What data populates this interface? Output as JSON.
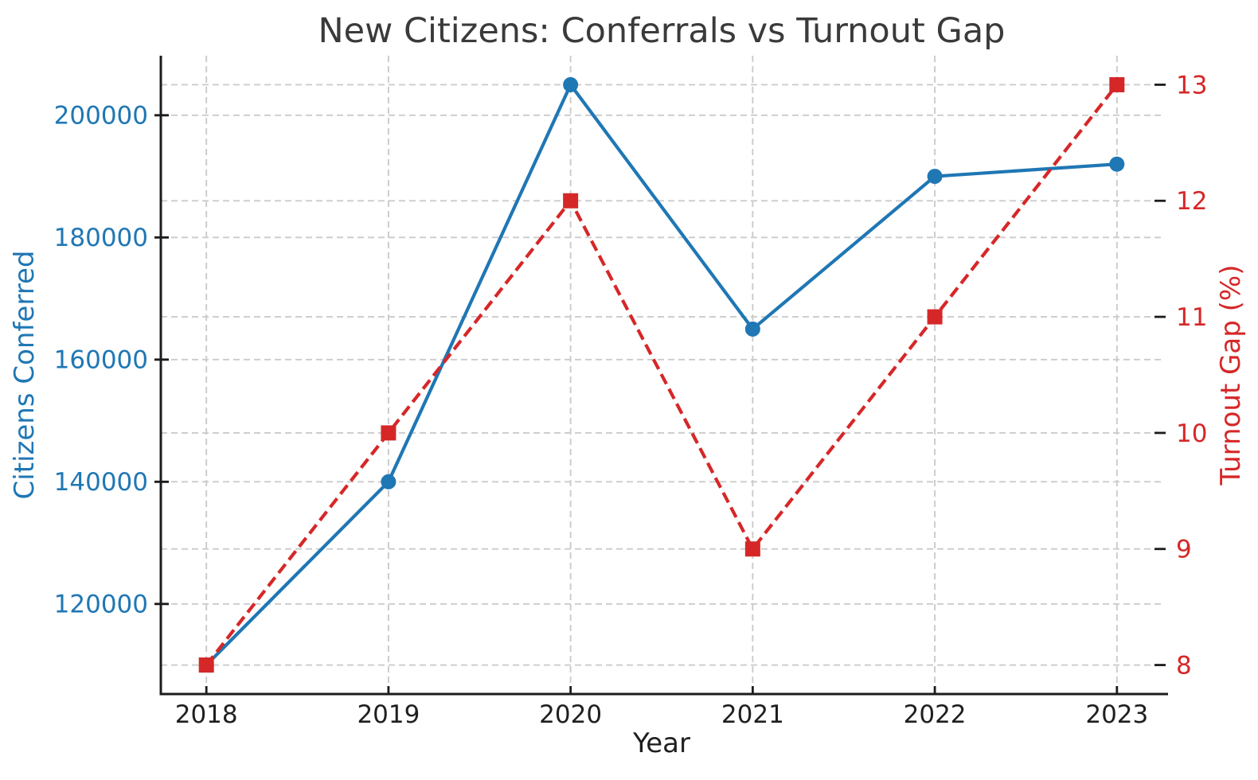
{
  "chart_data": {
    "type": "line",
    "title": "New Citizens: Conferrals vs Turnout Gap",
    "xlabel": "Year",
    "x": [
      2018,
      2019,
      2020,
      2021,
      2022,
      2023
    ],
    "series": [
      {
        "name": "Citizens Conferred",
        "axis": "left",
        "values": [
          110000,
          140000,
          205000,
          165000,
          190000,
          192000
        ],
        "color": "#1f77b4",
        "line_style": "solid",
        "marker": "circle"
      },
      {
        "name": "Turnout Gap (%)",
        "axis": "right",
        "values": [
          8,
          10,
          12,
          9,
          11,
          13
        ],
        "color": "#d62728",
        "line_style": "dashed",
        "marker": "square"
      }
    ],
    "left_axis": {
      "label": "Citizens Conferred",
      "color": "#1f77b4",
      "ticks": [
        120000,
        140000,
        160000,
        180000,
        200000
      ],
      "ylim": [
        105250,
        209750
      ]
    },
    "right_axis": {
      "label": "Turnout Gap (%)",
      "color": "#d62728",
      "ticks": [
        8,
        9,
        10,
        11,
        12,
        13
      ],
      "ylim": [
        7.75,
        13.25
      ]
    },
    "x_axis": {
      "label": "Year",
      "ticks": [
        2018,
        2019,
        2020,
        2021,
        2022,
        2023
      ],
      "xlim": [
        2017.75,
        2023.25
      ],
      "color": "#1f1f1f"
    },
    "grid": true,
    "legend": "none",
    "styles": {
      "grid_color": "#cbcbcb",
      "spine_color": "#1c1c1c",
      "title_color": "#3a3a3a"
    }
  }
}
